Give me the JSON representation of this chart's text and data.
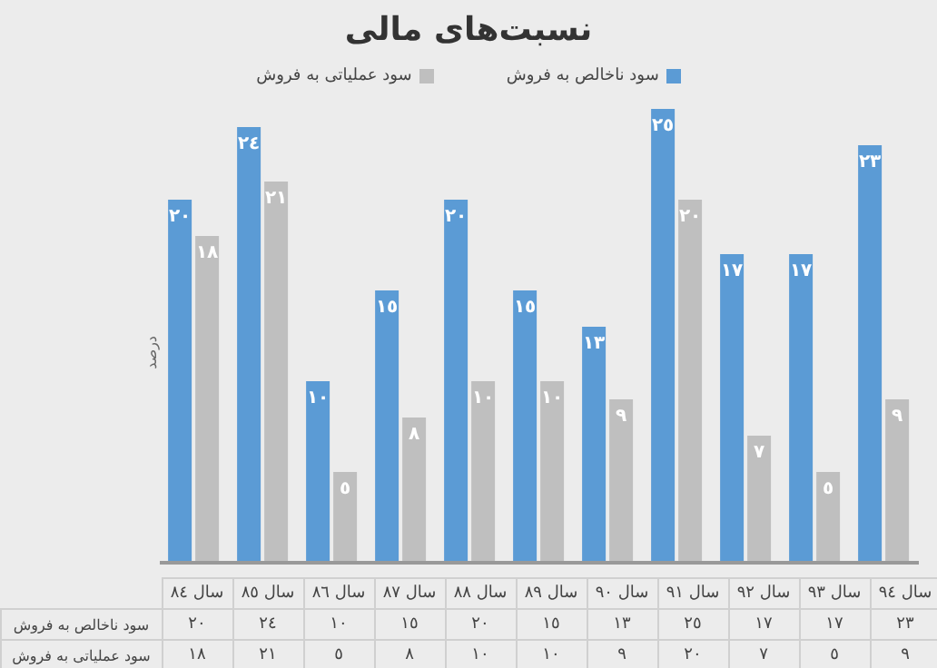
{
  "chart_data": {
    "type": "bar",
    "title": "نسبت‌های مالی",
    "ylabel": "درصد",
    "relative": false,
    "categories": [
      "سال ٨٤",
      "سال ٨٥",
      "سال ٨٦",
      "سال ٨٧",
      "سال ٨٨",
      "سال ٨٩",
      "سال ٩٠",
      "سال ٩١",
      "سال ٩٢",
      "سال ٩٣",
      "سال ٩٤"
    ],
    "series": [
      {
        "name": "سود ناخالص به فروش",
        "color": "#5b9bd5",
        "values": [
          20,
          24,
          10,
          15,
          20,
          15,
          13,
          25,
          17,
          17,
          23
        ],
        "value_labels": [
          "٢٠",
          "٢٤",
          "١٠",
          "١٥",
          "٢٠",
          "١٥",
          "١٣",
          "٢٥",
          "١٧",
          "١٧",
          "٢٣"
        ]
      },
      {
        "name": "سود عملیاتی به فروش",
        "color": "#bfbfbf",
        "values": [
          18,
          21,
          5,
          8,
          10,
          10,
          9,
          20,
          7,
          5,
          9
        ],
        "value_labels": [
          "١٨",
          "٢١",
          "٥",
          "٨",
          "١٠",
          "١٠",
          "٩",
          "٢٠",
          "٧",
          "٥",
          "٩"
        ]
      }
    ],
    "legend": "top"
  }
}
